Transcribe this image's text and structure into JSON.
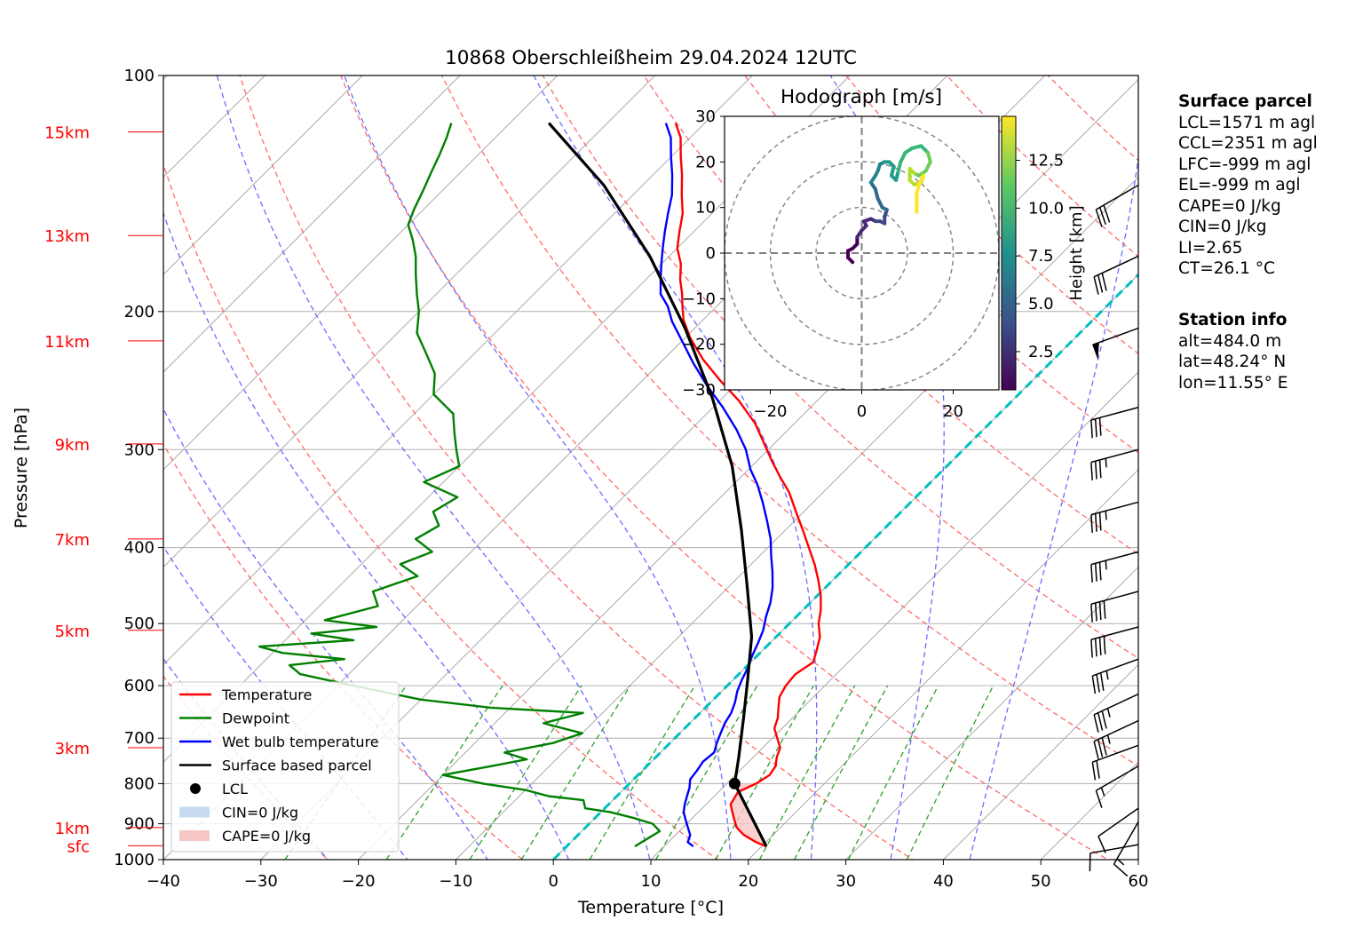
{
  "chart_data": {
    "type": "line",
    "subtype": "skew-T log-P",
    "title": "10868 Oberschleißheim 29.04.2024 12UTC",
    "xlabel": "Temperature [°C]",
    "ylabel": "Pressure [hPa]",
    "xlim": [
      -40,
      60
    ],
    "ylim": [
      1000,
      100
    ],
    "y_scale": "log",
    "x_ticks": [
      "−40",
      "−30",
      "−20",
      "−10",
      "0",
      "10",
      "20",
      "30",
      "40",
      "50",
      "60"
    ],
    "y_ticks": [
      {
        "p": 100,
        "label": "100"
      },
      {
        "p": 200,
        "label": "200"
      },
      {
        "p": 300,
        "label": "300"
      },
      {
        "p": 400,
        "label": "400"
      },
      {
        "p": 500,
        "label": "500"
      },
      {
        "p": 600,
        "label": "600"
      },
      {
        "p": 700,
        "label": "700"
      },
      {
        "p": 800,
        "label": "800"
      },
      {
        "p": 900,
        "label": "900"
      },
      {
        "p": 1000,
        "label": "1000"
      }
    ],
    "height_labels": [
      {
        "p": 118,
        "label": "15km"
      },
      {
        "p": 160,
        "label": "13km"
      },
      {
        "p": 218,
        "label": "11km"
      },
      {
        "p": 295,
        "label": "9km"
      },
      {
        "p": 390,
        "label": "7km"
      },
      {
        "p": 510,
        "label": "5km"
      },
      {
        "p": 720,
        "label": "3km"
      },
      {
        "p": 910,
        "label": "1km"
      },
      {
        "p": 960,
        "label": "sfc"
      }
    ],
    "series": [
      {
        "name": "Temperature",
        "color": "#ff0000",
        "points": [
          [
            20.5,
            962
          ],
          [
            19,
            950
          ],
          [
            17,
            930
          ],
          [
            15.5,
            910
          ],
          [
            14.5,
            890
          ],
          [
            13.5,
            870
          ],
          [
            12.5,
            850
          ],
          [
            12,
            820
          ],
          [
            13,
            800
          ],
          [
            13.5,
            780
          ],
          [
            13.2,
            760
          ],
          [
            12.4,
            740
          ],
          [
            11.8,
            720
          ],
          [
            10.5,
            700
          ],
          [
            9.2,
            680
          ],
          [
            8.5,
            660
          ],
          [
            7.5,
            640
          ],
          [
            6.5,
            620
          ],
          [
            6,
            600
          ],
          [
            5.8,
            580
          ],
          [
            6.4,
            560
          ],
          [
            5.5,
            540
          ],
          [
            4.5,
            520
          ],
          [
            3,
            500
          ],
          [
            1.8,
            480
          ],
          [
            0.3,
            460
          ],
          [
            -1.5,
            440
          ],
          [
            -3.5,
            420
          ],
          [
            -5.8,
            400
          ],
          [
            -8.2,
            380
          ],
          [
            -10.8,
            360
          ],
          [
            -13.5,
            340
          ],
          [
            -16,
            325
          ],
          [
            -18.5,
            310
          ],
          [
            -21,
            295
          ],
          [
            -24,
            278
          ],
          [
            -28,
            260
          ],
          [
            -32,
            245
          ],
          [
            -36,
            230
          ],
          [
            -39.5,
            216
          ],
          [
            -42,
            205
          ],
          [
            -43.5,
            197
          ],
          [
            -44.8,
            190
          ],
          [
            -46.5,
            182
          ],
          [
            -48,
            174
          ],
          [
            -50,
            166
          ],
          [
            -51.5,
            158
          ],
          [
            -53,
            150
          ],
          [
            -55,
            142
          ],
          [
            -57,
            134
          ],
          [
            -59,
            127
          ],
          [
            -61,
            120
          ],
          [
            -63,
            115
          ]
        ]
      },
      {
        "name": "Dewpoint",
        "color": "#008000",
        "points": [
          [
            7,
            962
          ],
          [
            7.5,
            940
          ],
          [
            8,
            920
          ],
          [
            6.5,
            900
          ],
          [
            4,
            885
          ],
          [
            1,
            870
          ],
          [
            -2,
            860
          ],
          [
            -3,
            840
          ],
          [
            -7,
            830
          ],
          [
            -10,
            815
          ],
          [
            -15,
            800
          ],
          [
            -20,
            780
          ],
          [
            -16,
            760
          ],
          [
            -13,
            745
          ],
          [
            -16,
            730
          ],
          [
            -12,
            710
          ],
          [
            -10,
            690
          ],
          [
            -15,
            670
          ],
          [
            -12,
            650
          ],
          [
            -22,
            640
          ],
          [
            -30,
            625
          ],
          [
            -35,
            610
          ],
          [
            -40,
            595
          ],
          [
            -45,
            580
          ],
          [
            -47,
            565
          ],
          [
            -42,
            555
          ],
          [
            -49,
            545
          ],
          [
            -52,
            535
          ],
          [
            -43,
            525
          ],
          [
            -48,
            515
          ],
          [
            -42,
            505
          ],
          [
            -48,
            495
          ],
          [
            -44,
            475
          ],
          [
            -46,
            455
          ],
          [
            -43,
            435
          ],
          [
            -46,
            420
          ],
          [
            -44,
            405
          ],
          [
            -47,
            390
          ],
          [
            -46,
            375
          ],
          [
            -48,
            360
          ],
          [
            -47,
            345
          ],
          [
            -52,
            330
          ],
          [
            -50,
            315
          ],
          [
            -52,
            300
          ],
          [
            -54,
            285
          ],
          [
            -56,
            270
          ],
          [
            -60,
            255
          ],
          [
            -62,
            240
          ],
          [
            -65,
            226
          ],
          [
            -68,
            213
          ],
          [
            -70,
            200
          ],
          [
            -72,
            190
          ],
          [
            -74,
            180
          ],
          [
            -76,
            170
          ],
          [
            -78,
            162
          ],
          [
            -80,
            155
          ],
          [
            -81,
            148
          ],
          [
            -82,
            140
          ],
          [
            -83,
            133
          ],
          [
            -84,
            126
          ],
          [
            -85,
            120
          ],
          [
            -86,
            115
          ]
        ]
      },
      {
        "name": "Wet bulb temperature",
        "color": "#0000ff",
        "points": [
          [
            13,
            962
          ],
          [
            12,
            950
          ],
          [
            11.5,
            930
          ],
          [
            10.5,
            910
          ],
          [
            9.5,
            890
          ],
          [
            8.5,
            870
          ],
          [
            7.8,
            850
          ],
          [
            7.2,
            830
          ],
          [
            6.6,
            810
          ],
          [
            5.8,
            790
          ],
          [
            5.6,
            770
          ],
          [
            5.3,
            750
          ],
          [
            5.5,
            730
          ],
          [
            4.8,
            710
          ],
          [
            4.2,
            690
          ],
          [
            3.6,
            670
          ],
          [
            3.2,
            650
          ],
          [
            2.5,
            630
          ],
          [
            1.6,
            610
          ],
          [
            0.9,
            590
          ],
          [
            0.3,
            570
          ],
          [
            -0.5,
            550
          ],
          [
            -1.2,
            530
          ],
          [
            -2,
            510
          ],
          [
            -3.1,
            490
          ],
          [
            -4.1,
            470
          ],
          [
            -5.4,
            450
          ],
          [
            -7,
            430
          ],
          [
            -8.8,
            410
          ],
          [
            -10.6,
            390
          ],
          [
            -12.8,
            370
          ],
          [
            -15.2,
            350
          ],
          [
            -17.6,
            332
          ],
          [
            -19.8,
            318
          ],
          [
            -22.3,
            300
          ],
          [
            -25.3,
            283
          ],
          [
            -29,
            265
          ],
          [
            -33,
            248
          ],
          [
            -36.5,
            233
          ],
          [
            -40,
            218
          ],
          [
            -43,
            206
          ],
          [
            -45,
            197
          ],
          [
            -47,
            190
          ],
          [
            -48.5,
            182
          ],
          [
            -50,
            174
          ],
          [
            -51.5,
            166
          ],
          [
            -53,
            158
          ],
          [
            -54.5,
            150
          ],
          [
            -56,
            142
          ],
          [
            -58,
            134
          ],
          [
            -60,
            127
          ],
          [
            -62,
            120
          ],
          [
            -64,
            115
          ]
        ]
      },
      {
        "name": "Surface based parcel",
        "color": "#000000",
        "points": [
          [
            20.5,
            962
          ],
          [
            10.8,
            800
          ],
          [
            8.5,
            740
          ],
          [
            5,
            660
          ],
          [
            1.5,
            590
          ],
          [
            -2.5,
            520
          ],
          [
            -8,
            450
          ],
          [
            -14.5,
            380
          ],
          [
            -22,
            315
          ],
          [
            -31,
            258
          ],
          [
            -41,
            210
          ],
          [
            -52,
            170
          ],
          [
            -64,
            138
          ],
          [
            -76,
            115
          ]
        ]
      }
    ],
    "lcl": {
      "name": "LCL",
      "t": 10.8,
      "p": 800
    },
    "hodograph": {
      "title": "Hodograph [m/s]",
      "xlim": [
        -30,
        30
      ],
      "ylim": [
        -30,
        30
      ],
      "x_ticks": [
        "−20",
        "0",
        "20"
      ],
      "y_ticks": [
        {
          "v": 30,
          "label": "30"
        },
        {
          "v": 20,
          "label": "20"
        },
        {
          "v": 10,
          "label": "10"
        },
        {
          "v": 0,
          "label": "0"
        },
        {
          "v": -10,
          "label": "−10"
        },
        {
          "v": -20,
          "label": "−20"
        },
        {
          "v": -30,
          "label": "−30"
        }
      ],
      "colorbar_label": "Height [km]",
      "colorbar_ticks": [
        "2.5",
        "5.0",
        "7.5",
        "10.0",
        "12.5"
      ],
      "colorbar_range": [
        0.5,
        14.8
      ],
      "uv": [
        [
          -2,
          -2
        ],
        [
          -3,
          -1
        ],
        [
          -3,
          0.5
        ],
        [
          -2,
          1
        ],
        [
          -1,
          2
        ],
        [
          -1,
          3.5
        ],
        [
          0,
          5
        ],
        [
          1,
          6
        ],
        [
          0.5,
          7
        ],
        [
          2,
          7.5
        ],
        [
          3,
          7
        ],
        [
          4,
          7
        ],
        [
          5,
          6.5
        ],
        [
          5,
          8
        ],
        [
          5.5,
          9.5
        ],
        [
          4.5,
          10
        ],
        [
          4,
          11
        ],
        [
          3.5,
          12
        ],
        [
          3,
          14
        ],
        [
          2,
          15.5
        ],
        [
          3,
          17
        ],
        [
          3.5,
          18
        ],
        [
          4,
          19.5
        ],
        [
          5,
          20
        ],
        [
          6,
          20
        ],
        [
          7,
          19
        ],
        [
          6.5,
          17
        ],
        [
          7.5,
          16
        ],
        [
          8,
          18
        ],
        [
          8.5,
          20
        ],
        [
          9.5,
          22
        ],
        [
          11,
          23
        ],
        [
          13,
          23.5
        ],
        [
          14.5,
          22
        ],
        [
          15,
          20
        ],
        [
          14,
          18
        ],
        [
          12.5,
          17
        ],
        [
          11.5,
          17.5
        ],
        [
          10.5,
          18.5
        ],
        [
          10.5,
          16
        ],
        [
          11.5,
          15
        ],
        [
          13,
          15.5
        ],
        [
          13.5,
          17
        ],
        [
          12.5,
          15
        ],
        [
          12,
          13
        ],
        [
          12,
          11
        ],
        [
          12,
          9
        ]
      ]
    },
    "wind_barbs": [
      {
        "p": 957,
        "speed": 10,
        "dir": 260
      },
      {
        "p": 895,
        "speed": 15,
        "dir": 210
      },
      {
        "p": 860,
        "speed": 10,
        "dir": 235
      },
      {
        "p": 760,
        "speed": 15,
        "dir": 240
      },
      {
        "p": 715,
        "speed": 20,
        "dir": 250
      },
      {
        "p": 665,
        "speed": 35,
        "dir": 245
      },
      {
        "p": 615,
        "speed": 35,
        "dir": 245
      },
      {
        "p": 555,
        "speed": 35,
        "dir": 250
      },
      {
        "p": 505,
        "speed": 40,
        "dir": 255
      },
      {
        "p": 455,
        "speed": 40,
        "dir": 255
      },
      {
        "p": 405,
        "speed": 35,
        "dir": 255
      },
      {
        "p": 350,
        "speed": 35,
        "dir": 255
      },
      {
        "p": 300,
        "speed": 35,
        "dir": 255
      },
      {
        "p": 265,
        "speed": 30,
        "dir": 255
      },
      {
        "p": 210,
        "speed": 50,
        "dir": 250
      },
      {
        "p": 170,
        "speed": 30,
        "dir": 245
      },
      {
        "p": 138,
        "speed": 30,
        "dir": 240
      }
    ],
    "legend": {
      "placement": "lower-left",
      "entries": [
        {
          "label": "Temperature",
          "color": "#ff0000",
          "kind": "line"
        },
        {
          "label": "Dewpoint",
          "color": "#008000",
          "kind": "line"
        },
        {
          "label": "Wet bulb temperature",
          "color": "#0000ff",
          "kind": "line"
        },
        {
          "label": "Surface based parcel",
          "color": "#000000",
          "kind": "line"
        },
        {
          "label": "LCL",
          "color": "#000000",
          "kind": "dot"
        },
        {
          "label": "CIN=0 J/kg",
          "color": "#c6dbef",
          "kind": "patch"
        },
        {
          "label": "CAPE=0 J/kg",
          "color": "#f7c6c6",
          "kind": "patch"
        }
      ]
    },
    "grid": true
  },
  "info": {
    "surface_parcel": {
      "heading": "Surface parcel",
      "lines": [
        "LCL=1571 m agl",
        "CCL=2351 m agl",
        "LFC=-999 m agl",
        "EL=-999 m agl",
        "CAPE=0 J/kg",
        "CIN=0 J/kg",
        "LI=2.65",
        "CT=26.1 °C"
      ]
    },
    "station": {
      "heading": "Station info",
      "lines": [
        "alt=484.0 m",
        "lat=48.24° N",
        "lon=11.55° E"
      ]
    }
  },
  "colors": {
    "dry_adiabat": "#ff6b6b",
    "moist_adiabat": "#6b6bff",
    "mixing_ratio": "#2ca02c",
    "isotherm": "#aaaaaa",
    "zero_isotherm": "#00bfbf",
    "height_label": "#ff0000"
  }
}
